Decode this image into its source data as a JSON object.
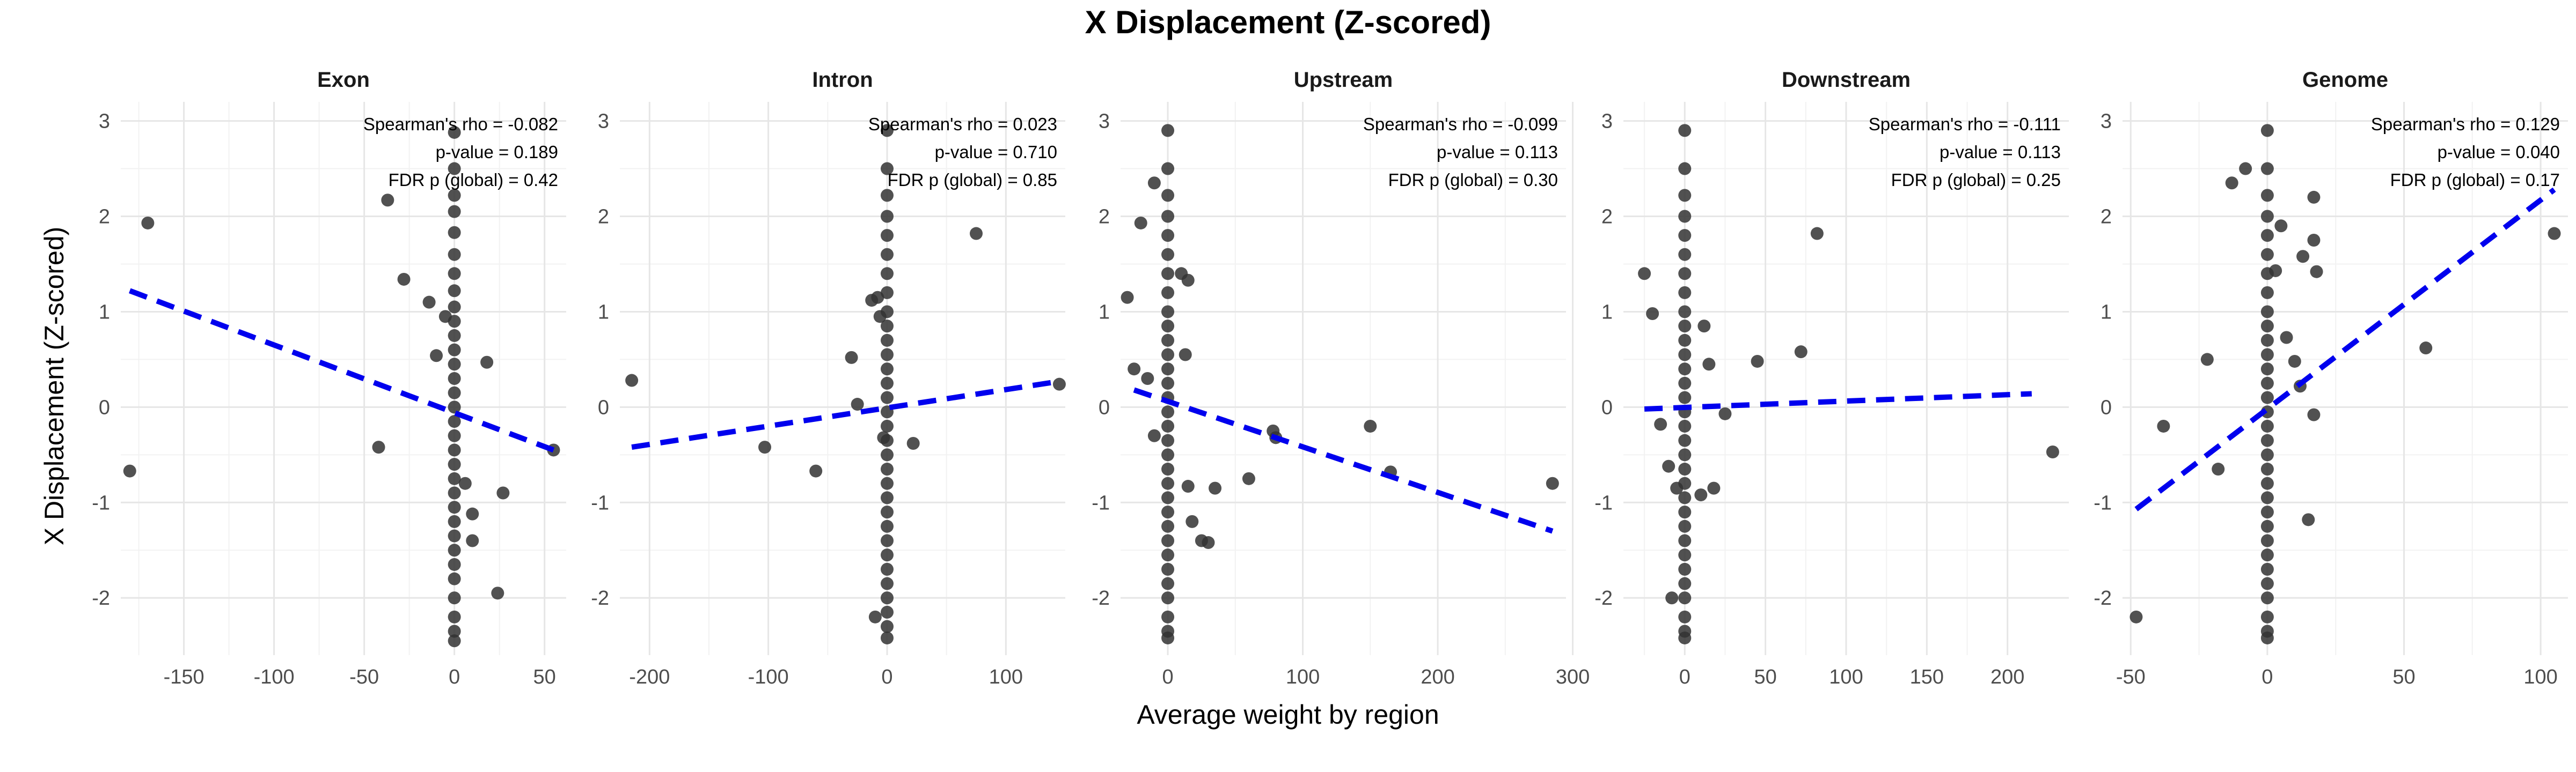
{
  "chart_data": {
    "type": "scatter",
    "title": "X Displacement (Z-scored)",
    "xlabel": "Average weight by region",
    "ylabel": "X Displacement (Z-scored)",
    "ylim": [
      -2.6,
      3.2
    ],
    "y_ticks": [
      -2,
      -1,
      0,
      1,
      2,
      3
    ],
    "grid": true,
    "point_color": "#333333",
    "fit_line_color": "#0000ee",
    "fit_line_style": "dashed",
    "panels": [
      {
        "name": "Exon",
        "xlim": [
          -185,
          62
        ],
        "x_ticks": [
          -150,
          -100,
          -50,
          0,
          50
        ],
        "annotations": [
          "Spearman's rho = -0.082",
          "p-value = 0.189",
          "FDR p (global) = 0.42"
        ],
        "fit_line": [
          [
            -180,
            1.22
          ],
          [
            55,
            -0.45
          ]
        ],
        "points": [
          [
            -180,
            -0.67
          ],
          [
            -170,
            1.93
          ],
          [
            -42,
            -0.42
          ],
          [
            -37,
            2.17
          ],
          [
            -28,
            1.34
          ],
          [
            -14,
            1.1
          ],
          [
            -10,
            0.54
          ],
          [
            -5,
            0.95
          ],
          [
            18,
            0.47
          ],
          [
            6,
            -0.8
          ],
          [
            10,
            -1.4
          ],
          [
            10,
            -1.12
          ],
          [
            24,
            -1.95
          ],
          [
            27,
            -0.9
          ],
          [
            55,
            -0.45
          ],
          [
            0,
            2.88
          ],
          [
            0,
            2.5
          ],
          [
            0,
            2.22
          ],
          [
            0,
            2.05
          ],
          [
            0,
            1.83
          ],
          [
            0,
            1.6
          ],
          [
            0,
            1.4
          ],
          [
            0,
            1.22
          ],
          [
            0,
            1.05
          ],
          [
            0,
            0.9
          ],
          [
            0,
            0.75
          ],
          [
            0,
            0.6
          ],
          [
            0,
            0.45
          ],
          [
            0,
            0.3
          ],
          [
            0,
            0.15
          ],
          [
            0,
            0.0
          ],
          [
            0,
            -0.15
          ],
          [
            0,
            -0.3
          ],
          [
            0,
            -0.45
          ],
          [
            0,
            -0.6
          ],
          [
            0,
            -0.75
          ],
          [
            0,
            -0.9
          ],
          [
            0,
            -1.05
          ],
          [
            0,
            -1.2
          ],
          [
            0,
            -1.35
          ],
          [
            0,
            -1.5
          ],
          [
            0,
            -1.65
          ],
          [
            0,
            -1.8
          ],
          [
            0,
            -2.0
          ],
          [
            0,
            -2.2
          ],
          [
            0,
            -2.35
          ],
          [
            0,
            -2.45
          ]
        ]
      },
      {
        "name": "Intron",
        "xlim": [
          -225,
          150
        ],
        "x_ticks": [
          -200,
          -100,
          0,
          100
        ],
        "annotations": [
          "Spearman's rho = 0.023",
          "p-value = 0.710",
          "FDR p (global) = 0.85"
        ],
        "fit_line": [
          [
            -215,
            -0.42
          ],
          [
            145,
            0.27
          ]
        ],
        "points": [
          [
            -215,
            0.28
          ],
          [
            -103,
            -0.42
          ],
          [
            -60,
            -0.67
          ],
          [
            -30,
            0.52
          ],
          [
            -25,
            0.03
          ],
          [
            -13,
            1.12
          ],
          [
            -8,
            1.15
          ],
          [
            -6,
            0.95
          ],
          [
            -3,
            -0.32
          ],
          [
            -10,
            -2.2
          ],
          [
            22,
            -0.38
          ],
          [
            75,
            1.82
          ],
          [
            145,
            0.24
          ],
          [
            0,
            2.9
          ],
          [
            0,
            2.5
          ],
          [
            0,
            2.22
          ],
          [
            0,
            2.0
          ],
          [
            0,
            1.8
          ],
          [
            0,
            1.6
          ],
          [
            0,
            1.4
          ],
          [
            0,
            1.2
          ],
          [
            0,
            1.0
          ],
          [
            0,
            0.85
          ],
          [
            0,
            0.7
          ],
          [
            0,
            0.55
          ],
          [
            0,
            0.4
          ],
          [
            0,
            0.25
          ],
          [
            0,
            0.1
          ],
          [
            0,
            -0.05
          ],
          [
            0,
            -0.2
          ],
          [
            0,
            -0.35
          ],
          [
            0,
            -0.5
          ],
          [
            0,
            -0.65
          ],
          [
            0,
            -0.8
          ],
          [
            0,
            -0.95
          ],
          [
            0,
            -1.1
          ],
          [
            0,
            -1.25
          ],
          [
            0,
            -1.4
          ],
          [
            0,
            -1.55
          ],
          [
            0,
            -1.7
          ],
          [
            0,
            -1.85
          ],
          [
            0,
            -2.0
          ],
          [
            0,
            -2.15
          ],
          [
            0,
            -2.3
          ],
          [
            0,
            -2.42
          ]
        ]
      },
      {
        "name": "Upstream",
        "xlim": [
          -35,
          295
        ],
        "x_ticks": [
          0,
          100,
          200,
          300
        ],
        "annotations": [
          "Spearman's rho = -0.099",
          "p-value = 0.113",
          "FDR p (global) = 0.30"
        ],
        "fit_line": [
          [
            -25,
            0.18
          ],
          [
            285,
            -1.3
          ]
        ],
        "points": [
          [
            -25,
            0.4
          ],
          [
            -20,
            1.93
          ],
          [
            -15,
            0.3
          ],
          [
            -30,
            1.15
          ],
          [
            -10,
            -0.3
          ],
          [
            -10,
            2.35
          ],
          [
            10,
            1.4
          ],
          [
            13,
            0.55
          ],
          [
            15,
            1.33
          ],
          [
            15,
            -0.83
          ],
          [
            18,
            -1.2
          ],
          [
            25,
            -1.4
          ],
          [
            30,
            -1.42
          ],
          [
            35,
            -0.85
          ],
          [
            60,
            -0.75
          ],
          [
            78,
            -0.25
          ],
          [
            80,
            -0.32
          ],
          [
            150,
            -0.2
          ],
          [
            165,
            -0.68
          ],
          [
            285,
            -0.8
          ],
          [
            0,
            2.9
          ],
          [
            0,
            2.5
          ],
          [
            0,
            2.22
          ],
          [
            0,
            2.0
          ],
          [
            0,
            1.8
          ],
          [
            0,
            1.6
          ],
          [
            0,
            1.4
          ],
          [
            0,
            1.2
          ],
          [
            0,
            1.0
          ],
          [
            0,
            0.85
          ],
          [
            0,
            0.7
          ],
          [
            0,
            0.55
          ],
          [
            0,
            0.4
          ],
          [
            0,
            0.25
          ],
          [
            0,
            0.1
          ],
          [
            0,
            -0.05
          ],
          [
            0,
            -0.2
          ],
          [
            0,
            -0.35
          ],
          [
            0,
            -0.5
          ],
          [
            0,
            -0.65
          ],
          [
            0,
            -0.8
          ],
          [
            0,
            -0.95
          ],
          [
            0,
            -1.1
          ],
          [
            0,
            -1.25
          ],
          [
            0,
            -1.4
          ],
          [
            0,
            -1.55
          ],
          [
            0,
            -1.7
          ],
          [
            0,
            -1.85
          ],
          [
            0,
            -2.0
          ],
          [
            0,
            -2.2
          ],
          [
            0,
            -2.35
          ],
          [
            0,
            -2.42
          ]
        ]
      },
      {
        "name": "Downstream",
        "xlim": [
          -38,
          238
        ],
        "x_ticks": [
          0,
          50,
          100,
          150,
          200
        ],
        "annotations": [
          "Spearman's rho = -0.111",
          "p-value = 0.113",
          "FDR p (global) = 0.25"
        ],
        "fit_line": [
          [
            -25,
            -0.02
          ],
          [
            215,
            0.14
          ]
        ],
        "points": [
          [
            -25,
            1.4
          ],
          [
            -20,
            0.98
          ],
          [
            -15,
            -0.18
          ],
          [
            -10,
            -0.62
          ],
          [
            -8,
            -2.0
          ],
          [
            -5,
            -0.85
          ],
          [
            10,
            -0.92
          ],
          [
            12,
            0.85
          ],
          [
            15,
            0.45
          ],
          [
            18,
            -0.85
          ],
          [
            25,
            -0.07
          ],
          [
            45,
            0.48
          ],
          [
            72,
            0.58
          ],
          [
            82,
            1.82
          ],
          [
            228,
            -0.47
          ],
          [
            0,
            2.9
          ],
          [
            0,
            2.5
          ],
          [
            0,
            2.22
          ],
          [
            0,
            2.0
          ],
          [
            0,
            1.8
          ],
          [
            0,
            1.6
          ],
          [
            0,
            1.4
          ],
          [
            0,
            1.2
          ],
          [
            0,
            1.0
          ],
          [
            0,
            0.85
          ],
          [
            0,
            0.7
          ],
          [
            0,
            0.55
          ],
          [
            0,
            0.4
          ],
          [
            0,
            0.25
          ],
          [
            0,
            0.1
          ],
          [
            0,
            -0.05
          ],
          [
            0,
            -0.2
          ],
          [
            0,
            -0.35
          ],
          [
            0,
            -0.5
          ],
          [
            0,
            -0.65
          ],
          [
            0,
            -0.8
          ],
          [
            0,
            -0.95
          ],
          [
            0,
            -1.1
          ],
          [
            0,
            -1.25
          ],
          [
            0,
            -1.4
          ],
          [
            0,
            -1.55
          ],
          [
            0,
            -1.7
          ],
          [
            0,
            -1.85
          ],
          [
            0,
            -2.0
          ],
          [
            0,
            -2.2
          ],
          [
            0,
            -2.35
          ],
          [
            0,
            -2.42
          ]
        ]
      },
      {
        "name": "Genome",
        "xlim": [
          -53,
          110
        ],
        "x_ticks": [
          -50,
          0,
          50,
          100
        ],
        "annotations": [
          "Spearman's rho = 0.129",
          "p-value = 0.040",
          "FDR p (global) = 0.17"
        ],
        "fit_line": [
          [
            -48,
            -1.07
          ],
          [
            105,
            2.28
          ]
        ],
        "points": [
          [
            -48,
            -2.2
          ],
          [
            -38,
            -0.2
          ],
          [
            -22,
            0.5
          ],
          [
            -18,
            -0.65
          ],
          [
            -13,
            2.35
          ],
          [
            -8,
            2.5
          ],
          [
            3,
            1.43
          ],
          [
            5,
            1.9
          ],
          [
            7,
            0.73
          ],
          [
            10,
            0.48
          ],
          [
            12,
            0.22
          ],
          [
            13,
            1.58
          ],
          [
            15,
            -1.18
          ],
          [
            17,
            -0.08
          ],
          [
            18,
            1.42
          ],
          [
            17,
            1.75
          ],
          [
            17,
            2.2
          ],
          [
            58,
            0.62
          ],
          [
            105,
            1.82
          ],
          [
            0,
            2.9
          ],
          [
            0,
            2.5
          ],
          [
            0,
            2.22
          ],
          [
            0,
            2.0
          ],
          [
            0,
            1.8
          ],
          [
            0,
            1.6
          ],
          [
            0,
            1.4
          ],
          [
            0,
            1.2
          ],
          [
            0,
            1.0
          ],
          [
            0,
            0.85
          ],
          [
            0,
            0.7
          ],
          [
            0,
            0.55
          ],
          [
            0,
            0.4
          ],
          [
            0,
            0.25
          ],
          [
            0,
            0.1
          ],
          [
            0,
            -0.05
          ],
          [
            0,
            -0.2
          ],
          [
            0,
            -0.35
          ],
          [
            0,
            -0.5
          ],
          [
            0,
            -0.65
          ],
          [
            0,
            -0.8
          ],
          [
            0,
            -0.95
          ],
          [
            0,
            -1.1
          ],
          [
            0,
            -1.25
          ],
          [
            0,
            -1.4
          ],
          [
            0,
            -1.55
          ],
          [
            0,
            -1.7
          ],
          [
            0,
            -1.85
          ],
          [
            0,
            -2.0
          ],
          [
            0,
            -2.2
          ],
          [
            0,
            -2.35
          ],
          [
            0,
            -2.42
          ]
        ]
      }
    ]
  }
}
